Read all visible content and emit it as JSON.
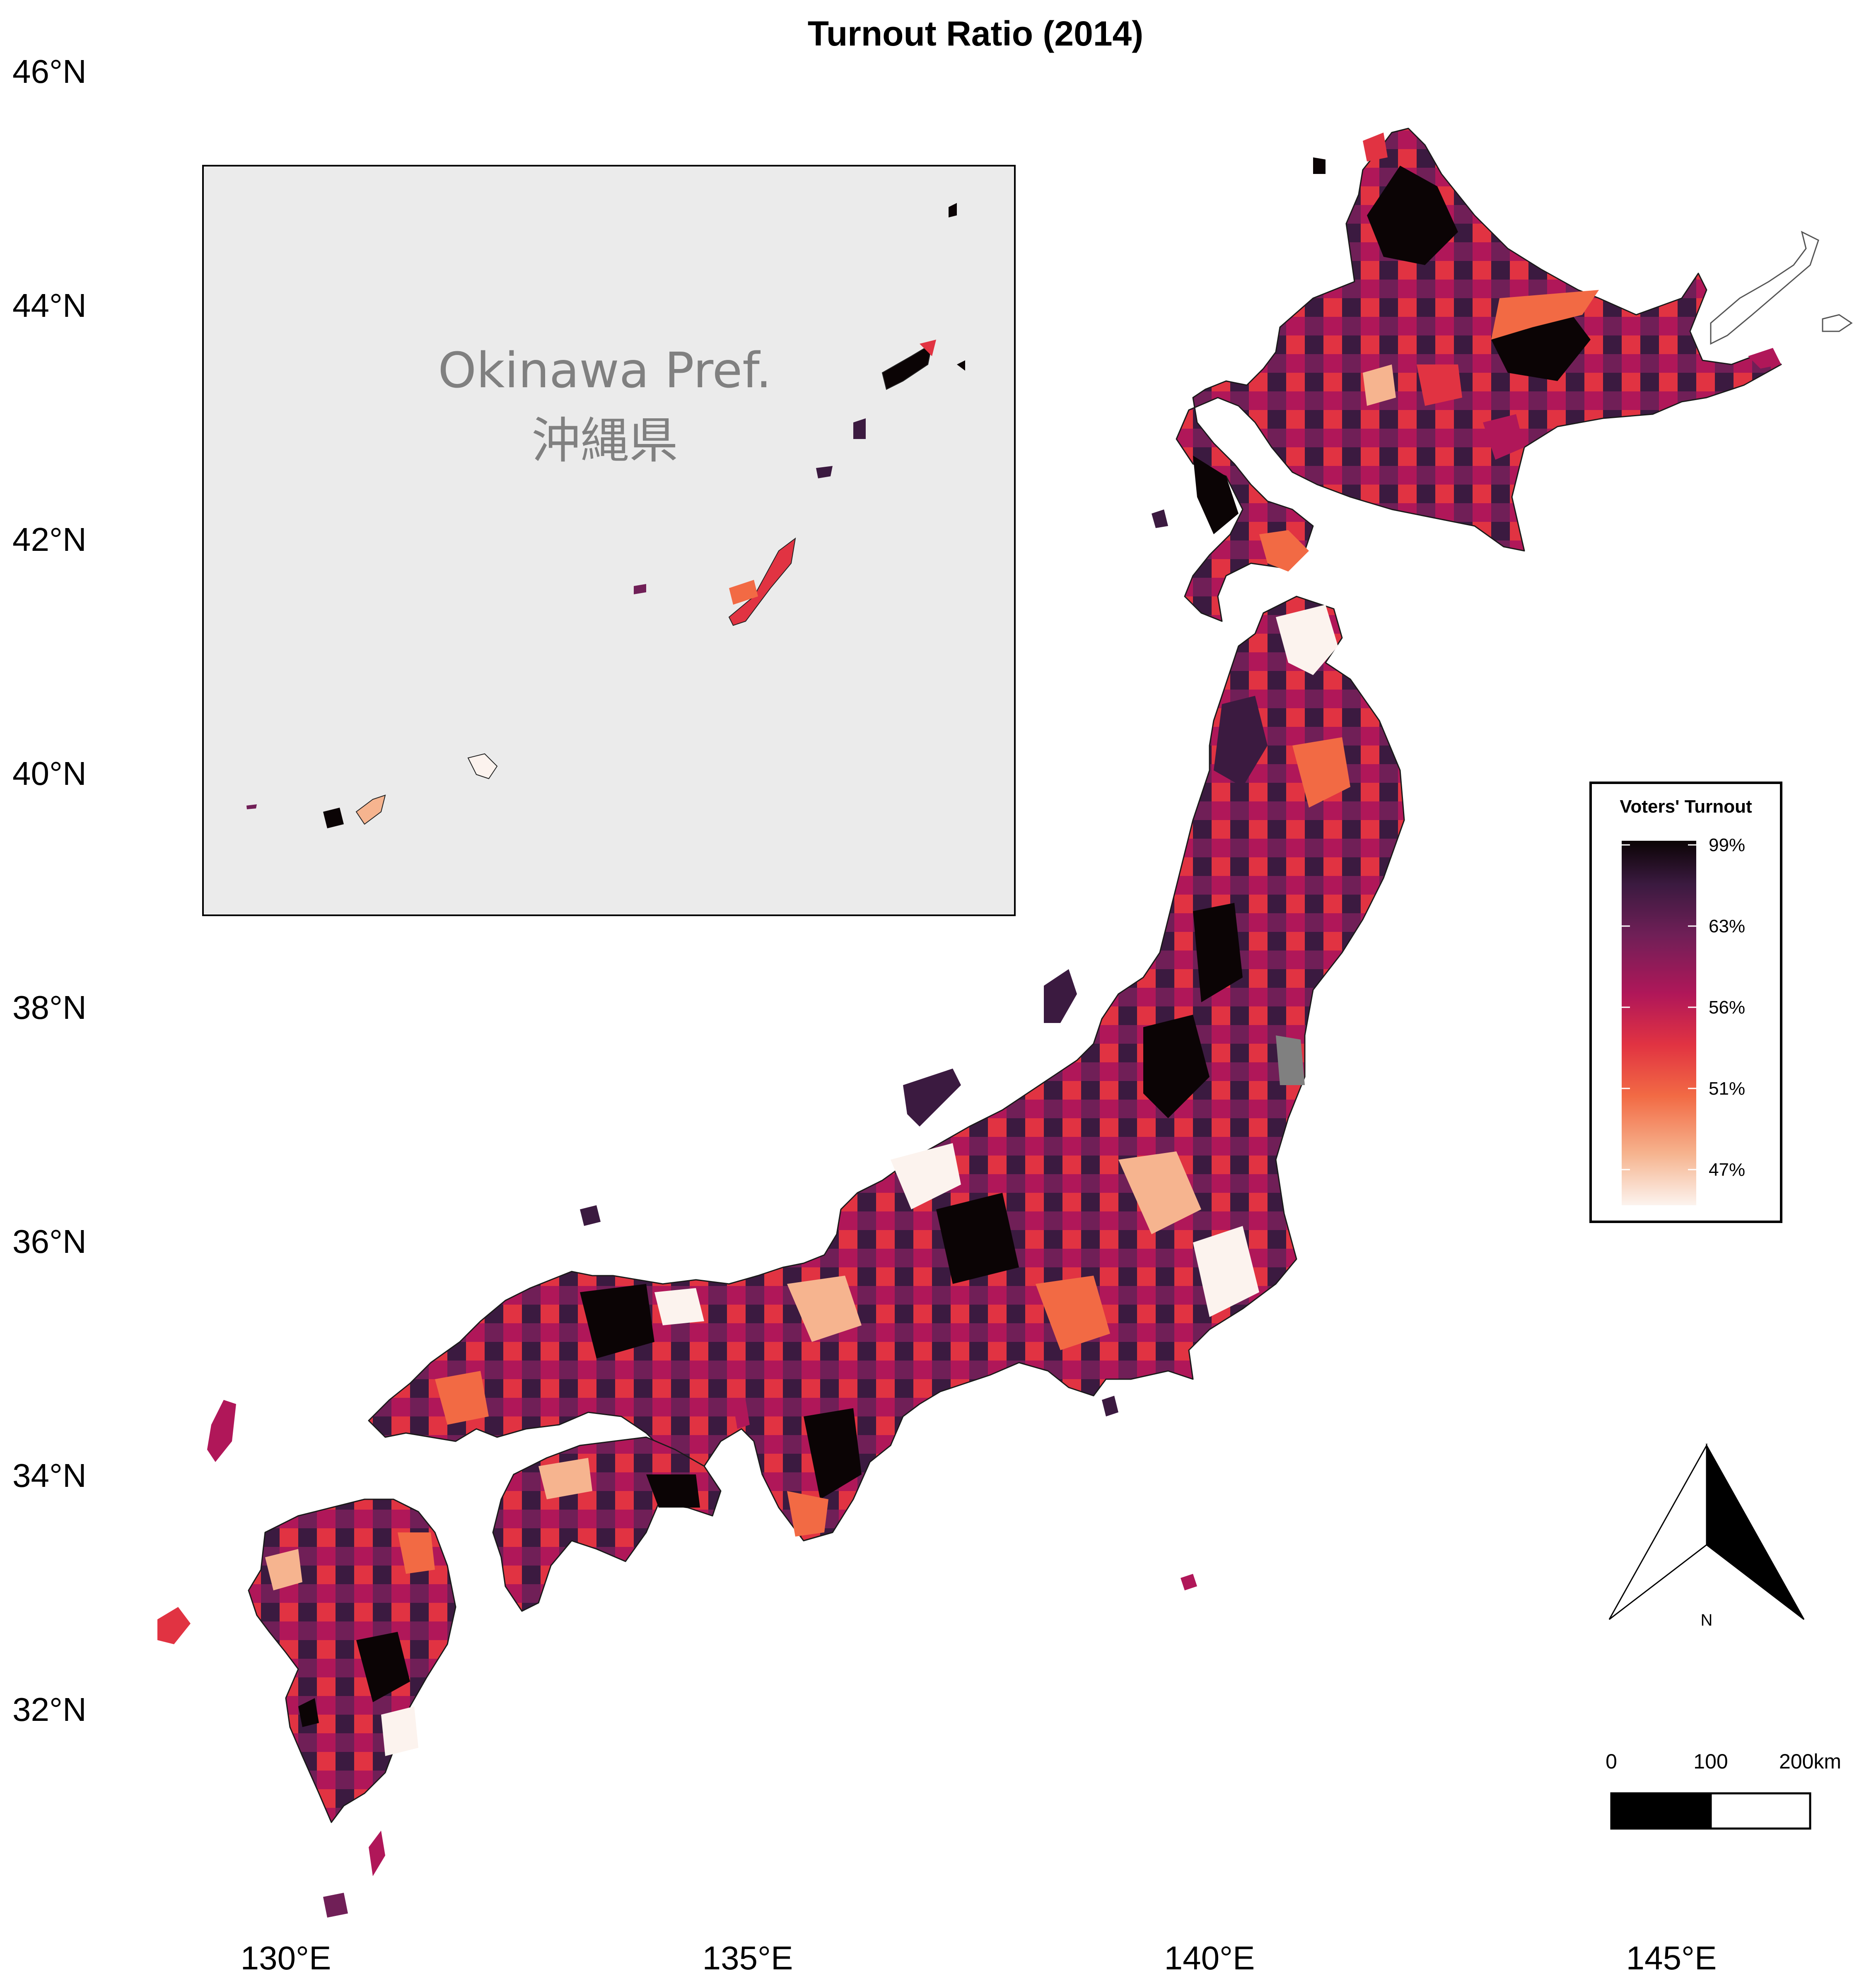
{
  "title": "Turnout Ratio (2014)",
  "lat_labels": [
    "46°N",
    "44°N",
    "42°N",
    "40°N",
    "38°N",
    "36°N",
    "34°N",
    "32°N"
  ],
  "lon_labels": [
    "130°E",
    "135°E",
    "140°E",
    "145°E"
  ],
  "inset": {
    "label_en": "Okinawa Pref.",
    "label_ja": "沖縄県"
  },
  "legend": {
    "title": "Voters' Turnout",
    "ticks": [
      "99%",
      "63%",
      "56%",
      "51%",
      "47%"
    ],
    "colors": [
      "#fcf3ee",
      "#f6b48f",
      "#f26a44",
      "#e13342",
      "#b01759",
      "#701f57",
      "#3b1a40",
      "#0b0405"
    ]
  },
  "north_arrow": {
    "label": "N"
  },
  "scale_bar": {
    "labels": [
      "0",
      "100",
      "200km"
    ]
  },
  "colors": {
    "background": "#ffffff",
    "inset_fill": "#ebebeb",
    "missing_data": "#808080",
    "neighbor_outline": "#ffffff"
  }
}
